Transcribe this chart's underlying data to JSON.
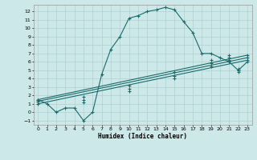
{
  "xlabel": "Humidex (Indice chaleur)",
  "xlim": [
    -0.5,
    23.5
  ],
  "ylim": [
    -1.5,
    12.8
  ],
  "xticks": [
    0,
    1,
    2,
    3,
    4,
    5,
    6,
    7,
    8,
    9,
    10,
    11,
    12,
    13,
    14,
    15,
    16,
    17,
    18,
    19,
    20,
    21,
    22,
    23
  ],
  "yticks": [
    -1,
    0,
    1,
    2,
    3,
    4,
    5,
    6,
    7,
    8,
    9,
    10,
    11,
    12
  ],
  "background_color": "#cde8e8",
  "grid_color": "#b0d0d0",
  "line_color": "#1a6b6b",
  "line1_x": [
    0,
    1,
    2,
    3,
    4,
    5,
    6,
    7,
    8,
    9,
    10,
    11,
    12,
    13,
    14,
    15,
    16,
    17,
    18,
    19,
    20,
    21,
    22,
    23
  ],
  "line1_y": [
    1.5,
    1.0,
    0.0,
    0.5,
    0.5,
    -1.0,
    0.0,
    4.5,
    7.5,
    9.0,
    11.2,
    11.5,
    12.0,
    12.2,
    12.5,
    12.2,
    10.8,
    9.5,
    7.0,
    7.0,
    6.5,
    6.0,
    5.0,
    6.0
  ],
  "line2_x": [
    0,
    23
  ],
  "line2_y": [
    1.5,
    6.8
  ],
  "line3_x": [
    0,
    23
  ],
  "line3_y": [
    1.3,
    6.5
  ],
  "line4_x": [
    0,
    23
  ],
  "line4_y": [
    1.0,
    6.2
  ],
  "marker_line2_x": [
    0,
    5,
    10,
    15,
    19,
    21,
    22,
    23
  ],
  "marker_line2_y": [
    1.5,
    1.8,
    3.2,
    4.8,
    6.2,
    6.8,
    5.2,
    6.8
  ],
  "marker_line3_x": [
    0,
    5,
    10,
    15,
    19,
    21,
    22,
    23
  ],
  "marker_line3_y": [
    1.3,
    1.5,
    2.8,
    4.3,
    5.8,
    6.5,
    5.0,
    6.5
  ],
  "marker_line4_x": [
    0,
    5,
    10,
    15,
    19,
    21,
    22,
    23
  ],
  "marker_line4_y": [
    1.0,
    1.2,
    2.5,
    4.0,
    5.5,
    6.2,
    4.8,
    6.2
  ]
}
